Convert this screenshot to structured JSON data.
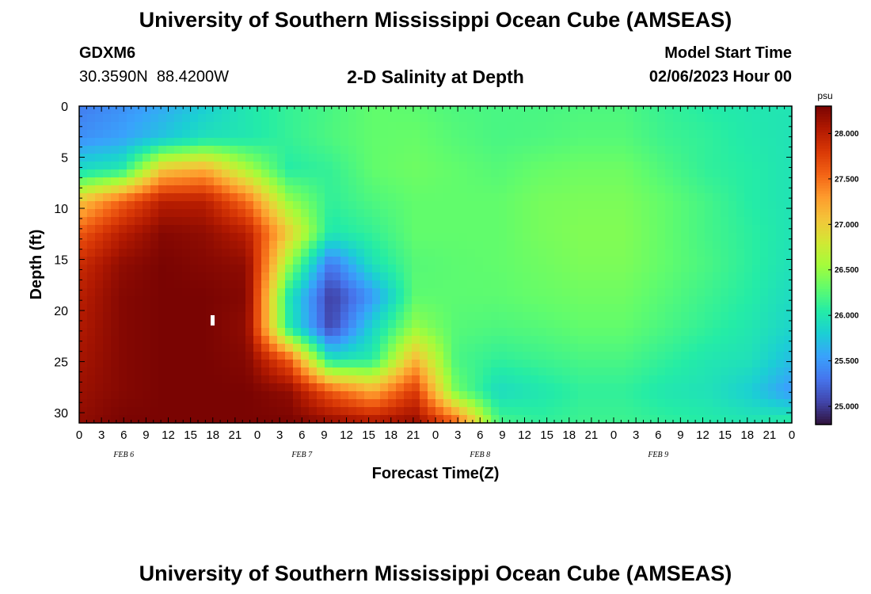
{
  "header": {
    "title": "University of Southern Mississippi Ocean Cube (AMSEAS)",
    "station_id": "GDXM6",
    "station_location": "30.3590N  88.4200W",
    "subtitle": "2-D Salinity at Depth",
    "model_start_label": "Model Start Time",
    "model_start_value": "02/06/2023 Hour 00"
  },
  "footer": {
    "title": "University of Southern Mississippi Ocean Cube (AMSEAS)"
  },
  "chart_data": {
    "type": "heatmap",
    "title": "2-D Salinity at Depth",
    "xlabel": "Forecast Time(Z)",
    "ylabel": "Depth (ft)",
    "x_tick_labels": [
      "0",
      "3",
      "6",
      "9",
      "12",
      "15",
      "18",
      "21",
      "0",
      "3",
      "6",
      "9",
      "12",
      "15",
      "18",
      "21",
      "0",
      "3",
      "6",
      "9",
      "12",
      "15",
      "18",
      "21",
      "0",
      "3",
      "6",
      "9",
      "12",
      "15",
      "18",
      "21",
      "0"
    ],
    "date_labels": [
      {
        "label": "FEB 6",
        "hour": 6
      },
      {
        "label": "FEB 7",
        "hour": 30
      },
      {
        "label": "FEB 8",
        "hour": 54
      },
      {
        "label": "FEB 9",
        "hour": 78
      }
    ],
    "xlim": [
      0,
      96
    ],
    "ylim": [
      0,
      31
    ],
    "y_inverted": true,
    "y_ticks": [
      0,
      5,
      10,
      15,
      20,
      25,
      30
    ],
    "colorbar": {
      "unit": "psu",
      "range": [
        24.8,
        28.3
      ],
      "ticks": [
        "25.000",
        "25.500",
        "26.000",
        "26.500",
        "27.000",
        "27.500",
        "28.000"
      ],
      "colormap": [
        "#30123b",
        "#4145ab",
        "#4675ed",
        "#39a2fc",
        "#1bcfd4",
        "#24eca6",
        "#61fc6c",
        "#a4fc3b",
        "#d1e834",
        "#f3c63a",
        "#fe9b2d",
        "#f36315",
        "#d93806",
        "#b11901",
        "#7a0402"
      ]
    },
    "grid": false,
    "values": [
      [
        25.35,
        25.45,
        25.6,
        25.8,
        26.0,
        26.12,
        26.2,
        26.3,
        26.28,
        26.22,
        26.2,
        26.2,
        26.22,
        26.22,
        26.12,
        26.05,
        26.0,
        25.98
      ],
      [
        25.45,
        25.55,
        25.75,
        25.95,
        26.0,
        26.12,
        26.22,
        26.3,
        26.32,
        26.25,
        26.2,
        26.22,
        26.25,
        26.25,
        26.15,
        26.1,
        26.02,
        25.97
      ],
      [
        25.9,
        26.02,
        27.05,
        27.2,
        26.6,
        26.05,
        26.12,
        26.3,
        26.35,
        26.3,
        26.25,
        26.32,
        26.35,
        26.35,
        26.22,
        26.1,
        26.05,
        25.97
      ],
      [
        27.05,
        27.55,
        28.0,
        28.0,
        27.5,
        26.5,
        26.1,
        26.22,
        26.3,
        26.3,
        26.3,
        26.38,
        26.4,
        26.4,
        26.3,
        26.18,
        26.05,
        25.97
      ],
      [
        27.6,
        28.0,
        28.25,
        28.2,
        28.0,
        27.0,
        26.0,
        26.12,
        26.3,
        26.3,
        26.3,
        26.38,
        26.42,
        26.42,
        26.3,
        26.18,
        26.08,
        25.97
      ],
      [
        27.9,
        28.2,
        28.3,
        28.25,
        28.2,
        26.5,
        25.3,
        25.95,
        26.25,
        26.28,
        26.3,
        26.35,
        26.4,
        26.4,
        26.3,
        26.2,
        26.08,
        25.95
      ],
      [
        28.0,
        28.25,
        28.3,
        28.3,
        28.25,
        26.0,
        25.0,
        25.5,
        26.28,
        26.28,
        26.28,
        26.32,
        26.35,
        26.35,
        26.25,
        26.15,
        26.05,
        25.9
      ],
      [
        28.05,
        28.25,
        28.3,
        28.3,
        28.2,
        26.05,
        25.05,
        25.85,
        26.5,
        26.25,
        26.22,
        26.25,
        26.3,
        26.3,
        26.2,
        26.1,
        26.0,
        25.85
      ],
      [
        28.1,
        28.25,
        28.3,
        28.3,
        28.25,
        27.6,
        25.95,
        26.05,
        27.15,
        26.2,
        26.1,
        26.15,
        26.2,
        26.2,
        26.1,
        26.0,
        25.95,
        25.7
      ],
      [
        28.15,
        28.25,
        28.3,
        28.3,
        28.3,
        28.2,
        27.6,
        27.2,
        27.8,
        26.35,
        25.9,
        26.0,
        26.1,
        26.1,
        26.0,
        25.95,
        25.8,
        25.5
      ],
      [
        28.2,
        28.3,
        28.3,
        28.3,
        28.3,
        28.3,
        28.2,
        28.1,
        28.2,
        27.6,
        26.2,
        26.1,
        26.15,
        26.15,
        26.1,
        26.05,
        26.0,
        26.1
      ]
    ]
  }
}
